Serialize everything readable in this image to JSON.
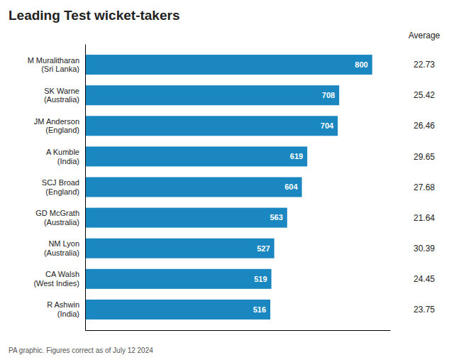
{
  "chart_data": {
    "type": "bar",
    "orientation": "horizontal",
    "title": "Leading Test wicket-takers",
    "categories": [
      "M Muralitharan\n(Sri Lanka)",
      "SK Warne\n(Australia)",
      "JM Anderson\n(England)",
      "A Kumble\n(India)",
      "SCJ Broad\n(England)",
      "GD McGrath\n(Australia)",
      "NM Lyon\n(Australia)",
      "CA Walsh\n(West Indies)",
      "R Ashwin\n(India)"
    ],
    "values": [
      800,
      708,
      704,
      619,
      604,
      563,
      527,
      519,
      516
    ],
    "color": "#1a87c0",
    "data_labels": true,
    "tick_labels": "y",
    "xlim": [
      0,
      850
    ],
    "average_label": "Average",
    "averages": [
      22.73,
      25.42,
      26.46,
      29.65,
      27.68,
      21.64,
      30.39,
      24.45,
      23.75
    ],
    "footnote": "PA graphic. Figures correct as of July 12 2024"
  }
}
